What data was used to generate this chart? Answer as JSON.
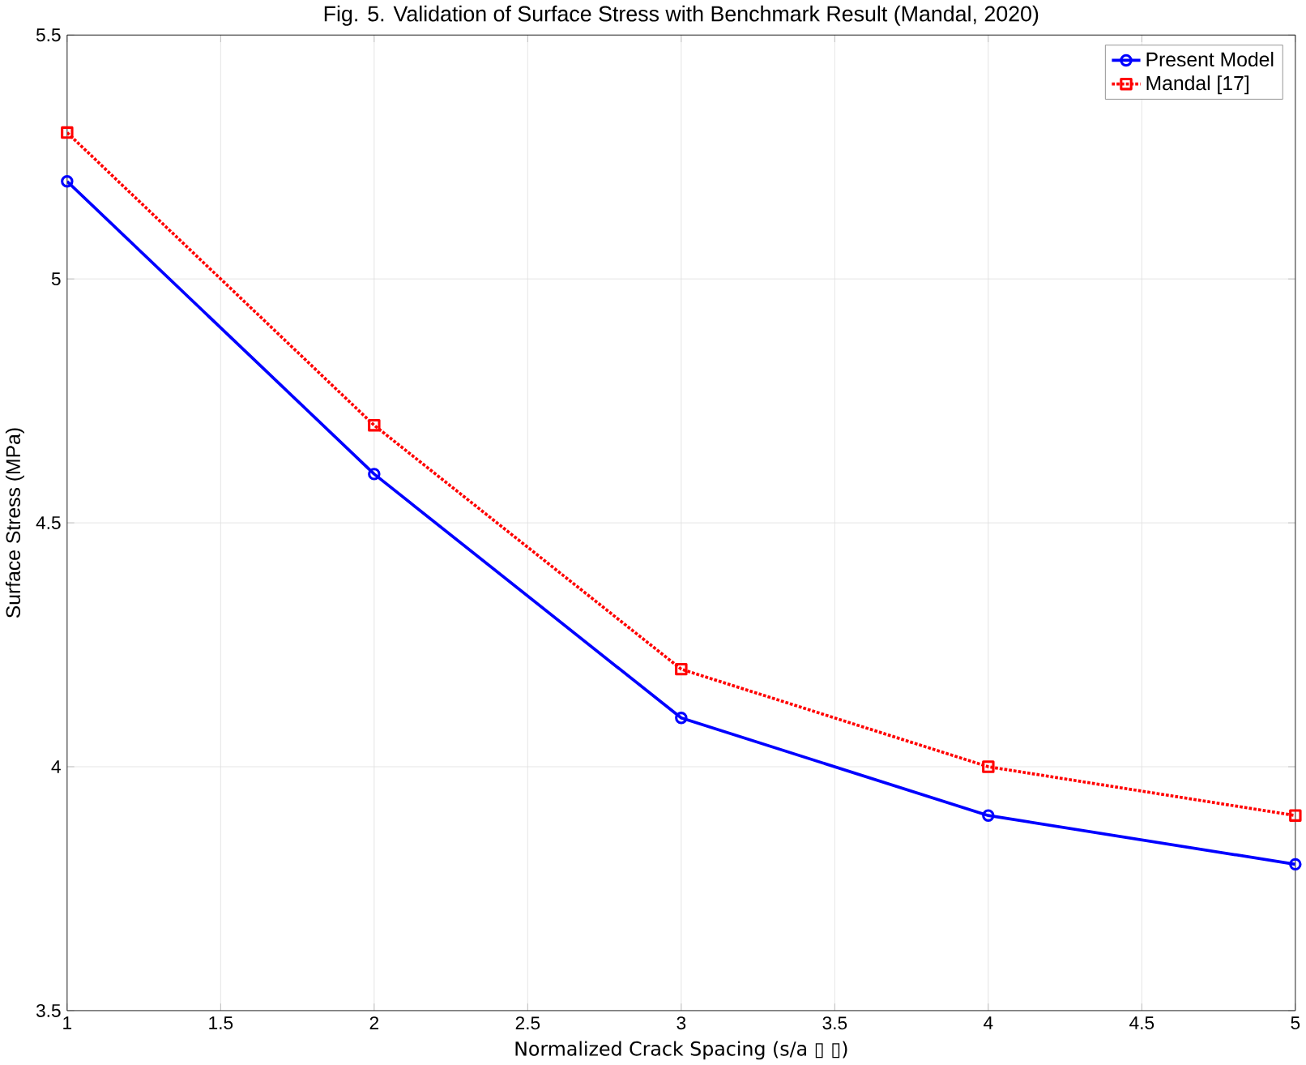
{
  "chart_data": {
    "type": "line",
    "title": "Fig. 5. Validation of Surface Stress with Benchmark Result (Mandal, 2020)",
    "xlabel": "Normalized Crack Spacing (s/a ▯ ▯)",
    "ylabel": "Surface Stress (MPa)",
    "x": [
      1,
      2,
      3,
      4,
      5
    ],
    "series": [
      {
        "name": "Present Model",
        "color": "#0000ff",
        "values": [
          5.2,
          4.6,
          4.1,
          3.9,
          3.8
        ],
        "marker": "circle",
        "line_style": "solid"
      },
      {
        "name": "Mandal [17]",
        "color": "#ff0000",
        "values": [
          5.3,
          4.7,
          4.2,
          4.0,
          3.9
        ],
        "marker": "square",
        "line_style": "dotted"
      }
    ],
    "xlim": [
      1,
      5
    ],
    "xticks": [
      1,
      1.5,
      2,
      2.5,
      3,
      3.5,
      4,
      4.5,
      5
    ],
    "ylim": [
      3.5,
      5.5
    ],
    "yticks": [
      3.5,
      4,
      4.5,
      5,
      5.5
    ],
    "grid": true,
    "legend": "top right"
  }
}
